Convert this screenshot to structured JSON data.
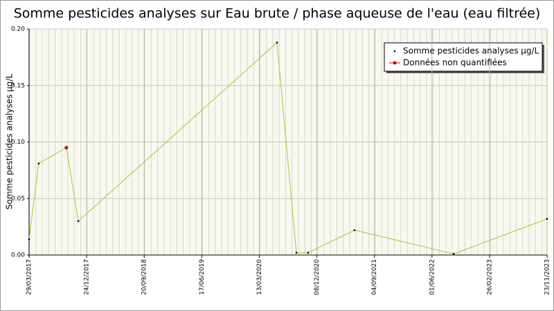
{
  "chart_data": {
    "type": "line",
    "title": "Somme pesticides analyses sur Eau brute / phase aqueuse de l'eau (eau filtrée)",
    "y_label": "Somme pesticides analyses µg/L",
    "xlim": [
      "29/03/2017",
      "23/11/2023"
    ],
    "xticks": [
      "29/03/2017",
      "24/12/2017",
      "20/09/2018",
      "17/06/2019",
      "13/03/2020",
      "08/12/2020",
      "04/09/2021",
      "01/06/2022",
      "26/02/2023",
      "23/11/2023"
    ],
    "ylim": [
      0,
      0.2
    ],
    "yticks": [
      {
        "value": 0,
        "label": "0.00"
      },
      0.05,
      {
        "value": 0.1,
        "label": "0.10"
      },
      0.15,
      {
        "value": 0.2,
        "label": "0.20"
      }
    ],
    "grid": true,
    "legend": "upper right",
    "series": [
      {
        "name": "Somme pesticides analyses µg/L",
        "color": "#9acd32",
        "x": [
          "29/03/2017",
          "13/05/2017",
          "20/09/2017",
          "15/11/2017",
          "04/06/2020",
          "03/09/2020",
          "28/10/2020",
          "03/06/2021",
          "11/09/2022",
          "23/11/2023"
        ],
        "values": [
          0.014,
          0.081,
          0.095,
          0.03,
          0.188,
          0.002,
          0.002,
          0.022,
          0.001,
          0.032
        ]
      },
      {
        "name": "Données non quantifiées",
        "color": "#cc0000",
        "x": [
          "20/09/2017"
        ],
        "values": [
          0.095
        ]
      }
    ]
  }
}
